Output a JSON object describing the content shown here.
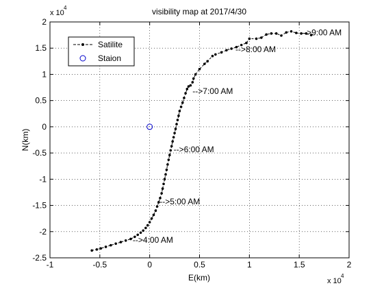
{
  "chart_data": {
    "type": "line",
    "title": "visibility map at 2017/4/30",
    "xlabel": "E(km)",
    "ylabel": "N(km)",
    "x_exponent": {
      "base": "x 10",
      "power": "4"
    },
    "y_exponent": {
      "base": "x 10",
      "power": "4"
    },
    "xlim": [
      -1,
      2
    ],
    "ylim": [
      -2.5,
      2
    ],
    "xticks": [
      -1,
      -0.5,
      0,
      0.5,
      1,
      1.5,
      2
    ],
    "xtick_labels": [
      "-1",
      "-0.5",
      "0",
      "0.5",
      "1",
      "1.5",
      "2"
    ],
    "yticks": [
      -2.5,
      -2,
      -1.5,
      -1,
      -0.5,
      0,
      0.5,
      1,
      1.5,
      2
    ],
    "ytick_labels": [
      "-2.5",
      "-2",
      "-1.5",
      "-1",
      "-0.5",
      "0",
      "0.5",
      "1",
      "1.5",
      "2"
    ],
    "grid": true,
    "legend_position": "top-left",
    "series": [
      {
        "name": "Satilite",
        "color": "#000000",
        "marker": "dot",
        "line": "dashed",
        "x": [
          -0.58,
          -0.53,
          -0.49,
          -0.44,
          -0.39,
          -0.34,
          -0.29,
          -0.24,
          -0.19,
          -0.15,
          -0.12,
          -0.09,
          -0.065,
          -0.04,
          -0.02,
          0.0,
          0.02,
          0.04,
          0.06,
          0.075,
          0.09,
          0.105,
          0.12,
          0.13,
          0.14,
          0.15,
          0.16,
          0.17,
          0.18,
          0.19,
          0.2,
          0.21,
          0.22,
          0.23,
          0.24,
          0.25,
          0.26,
          0.27,
          0.28,
          0.29,
          0.3,
          0.315,
          0.33,
          0.345,
          0.36,
          0.375,
          0.39,
          0.41,
          0.43,
          0.44,
          0.46,
          0.5,
          0.55,
          0.58,
          0.63,
          0.66,
          0.72,
          0.77,
          0.82,
          0.87,
          0.92,
          0.97,
          1.0,
          1.07,
          1.12,
          1.17,
          1.22,
          1.27,
          1.32,
          1.37,
          1.42,
          1.47,
          1.52,
          1.57,
          1.62
        ],
        "y": [
          -2.36,
          -2.34,
          -2.32,
          -2.29,
          -2.26,
          -2.23,
          -2.2,
          -2.17,
          -2.14,
          -2.1,
          -2.06,
          -2.02,
          -1.98,
          -1.93,
          -1.88,
          -1.82,
          -1.75,
          -1.68,
          -1.6,
          -1.52,
          -1.44,
          -1.36,
          -1.27,
          -1.18,
          -1.09,
          -1.0,
          -0.91,
          -0.82,
          -0.72,
          -0.63,
          -0.54,
          -0.45,
          -0.37,
          -0.28,
          -0.2,
          -0.12,
          -0.04,
          0.05,
          0.13,
          0.21,
          0.3,
          0.38,
          0.46,
          0.55,
          0.64,
          0.72,
          0.77,
          0.79,
          0.85,
          0.92,
          1.0,
          1.1,
          1.2,
          1.25,
          1.35,
          1.38,
          1.42,
          1.46,
          1.49,
          1.52,
          1.56,
          1.6,
          1.68,
          1.68,
          1.7,
          1.76,
          1.78,
          1.78,
          1.74,
          1.8,
          1.82,
          1.79,
          1.78,
          1.78,
          1.75
        ]
      }
    ],
    "station": {
      "name": "Staion",
      "x": 0,
      "y": 0,
      "color": "#0000cc",
      "marker": "circle"
    },
    "annotations": [
      {
        "text": "-->4:00 AM",
        "x": -0.17,
        "y": -2.16
      },
      {
        "text": "-->5:00 AM",
        "x": 0.1,
        "y": -1.43
      },
      {
        "text": "-->6:00 AM",
        "x": 0.24,
        "y": -0.43
      },
      {
        "text": "-->7:00 AM",
        "x": 0.43,
        "y": 0.68
      },
      {
        "text": "-->8:00 AM",
        "x": 0.86,
        "y": 1.48
      },
      {
        "text": "-->9:00 AM",
        "x": 1.52,
        "y": 1.8
      }
    ]
  }
}
